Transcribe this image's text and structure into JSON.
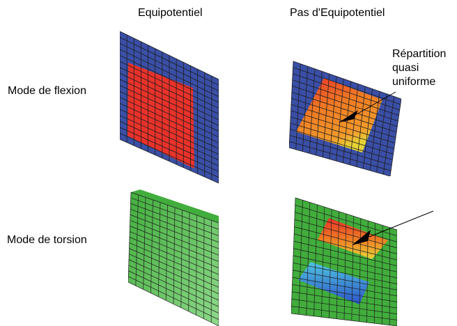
{
  "headers": {
    "col_equipotential": "Equipotentiel",
    "col_no_equipotential": "Pas d'Equipotentiel"
  },
  "rows": {
    "bending": "Mode de flexion",
    "torsion": "Mode de torsion"
  },
  "annotation": {
    "lines": [
      "Répartition",
      "quasi",
      "uniforme"
    ]
  },
  "colors": {
    "mesh_blue": "#3a4fa6",
    "patch_red": "#e8322a",
    "mesh_green": "#41ad3c",
    "mesh_green_light": "#8fd98a",
    "mesh_line": "#1c1c1c",
    "gradient_orange": "#f07a24",
    "gradient_yellow": "#e6d436",
    "gradient_cyan": "#4fc4e0",
    "gradient_blue": "#2e54c8"
  }
}
